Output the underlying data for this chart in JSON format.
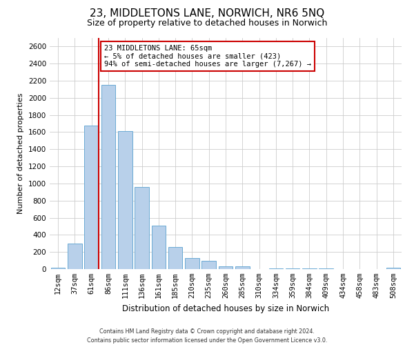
{
  "title": "23, MIDDLETONS LANE, NORWICH, NR6 5NQ",
  "subtitle": "Size of property relative to detached houses in Norwich",
  "xlabel": "Distribution of detached houses by size in Norwich",
  "ylabel": "Number of detached properties",
  "bar_labels": [
    "12sqm",
    "37sqm",
    "61sqm",
    "86sqm",
    "111sqm",
    "136sqm",
    "161sqm",
    "185sqm",
    "210sqm",
    "235sqm",
    "260sqm",
    "285sqm",
    "310sqm",
    "334sqm",
    "359sqm",
    "384sqm",
    "409sqm",
    "434sqm",
    "458sqm",
    "483sqm",
    "508sqm"
  ],
  "bar_values": [
    20,
    300,
    1680,
    2150,
    1610,
    960,
    510,
    255,
    130,
    100,
    30,
    30,
    0,
    5,
    5,
    5,
    5,
    0,
    0,
    0,
    15
  ],
  "bar_color": "#b8d0ea",
  "bar_edge_color": "#6aaad4",
  "ylim": [
    0,
    2700
  ],
  "yticks": [
    0,
    200,
    400,
    600,
    800,
    1000,
    1200,
    1400,
    1600,
    1800,
    2000,
    2200,
    2400,
    2600
  ],
  "property_line_idx": 2,
  "property_line_color": "#cc0000",
  "annotation_text_line1": "23 MIDDLETONS LANE: 65sqm",
  "annotation_text_line2": "← 5% of detached houses are smaller (423)",
  "annotation_text_line3": "94% of semi-detached houses are larger (7,267) →",
  "footer_line1": "Contains HM Land Registry data © Crown copyright and database right 2024.",
  "footer_line2": "Contains public sector information licensed under the Open Government Licence v3.0.",
  "background_color": "#ffffff",
  "grid_color": "#cccccc",
  "title_fontsize": 11,
  "subtitle_fontsize": 9,
  "ylabel_fontsize": 8,
  "xlabel_fontsize": 8.5,
  "tick_fontsize": 7.5,
  "annotation_fontsize": 7.5,
  "footer_fontsize": 5.8
}
